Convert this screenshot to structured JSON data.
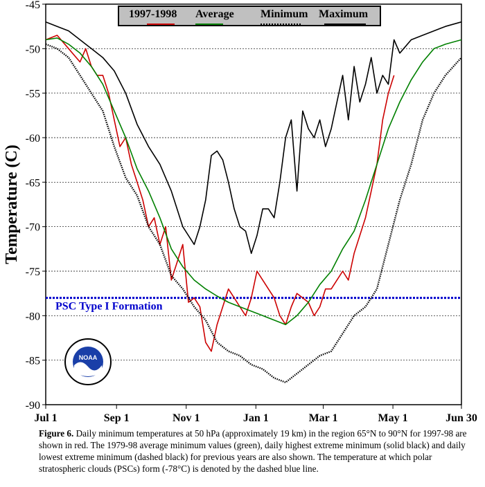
{
  "chart_data": {
    "type": "line",
    "title": "",
    "ylabel": "Temperature (C)",
    "xlabel": "",
    "xlim": [
      0,
      364
    ],
    "ylim": [
      -90,
      -45
    ],
    "grid": true,
    "x_ticks": [
      {
        "day": 0,
        "label": "Jul 1"
      },
      {
        "day": 62,
        "label": "Sep 1"
      },
      {
        "day": 123,
        "label": "Nov 1"
      },
      {
        "day": 184,
        "label": "Jan 1"
      },
      {
        "day": 243,
        "label": "Mar 1"
      },
      {
        "day": 304,
        "label": "May 1"
      },
      {
        "day": 364,
        "label": "Jun 30"
      }
    ],
    "y_ticks": [
      -45,
      -50,
      -55,
      -60,
      -65,
      -70,
      -75,
      -80,
      -85,
      -90
    ],
    "threshold": {
      "value": -78,
      "label": "PSC Type I Formation",
      "color": "#0000cc"
    },
    "legend_position": "top",
    "series": [
      {
        "name": "1997-1998",
        "color": "#cc0000",
        "style": "solid",
        "x": [
          0,
          10,
          20,
          30,
          35,
          40,
          45,
          50,
          55,
          60,
          65,
          70,
          75,
          80,
          85,
          90,
          95,
          100,
          105,
          110,
          115,
          120,
          125,
          130,
          135,
          140,
          145,
          150,
          155,
          160,
          165,
          170,
          175,
          180,
          185,
          190,
          195,
          200,
          205,
          210,
          215,
          220,
          225,
          230,
          235,
          240,
          245,
          250,
          255,
          260,
          265,
          270,
          275,
          280,
          285,
          290,
          295,
          300,
          305
        ],
        "y": [
          -49,
          -48.5,
          -50,
          -51.5,
          -50,
          -52,
          -53,
          -53,
          -55,
          -58,
          -61,
          -60,
          -63,
          -65,
          -67,
          -70,
          -69,
          -72,
          -70,
          -76,
          -74,
          -72,
          -78.5,
          -78,
          -79,
          -83,
          -84,
          -81,
          -79,
          -77,
          -78,
          -79,
          -80,
          -78,
          -75,
          -76,
          -77,
          -78,
          -80,
          -81,
          -79,
          -77.5,
          -78,
          -78.5,
          -80,
          -79,
          -77,
          -77,
          -76,
          -75,
          -76,
          -73,
          -71,
          -69,
          -66,
          -63,
          -58,
          -55,
          -53
        ]
      },
      {
        "name": "Average",
        "color": "#008000",
        "style": "solid",
        "x": [
          0,
          10,
          20,
          30,
          40,
          50,
          60,
          70,
          80,
          90,
          100,
          110,
          120,
          130,
          140,
          150,
          160,
          170,
          180,
          190,
          200,
          210,
          220,
          230,
          240,
          250,
          260,
          270,
          280,
          290,
          300,
          310,
          320,
          330,
          340,
          350,
          364
        ],
        "y": [
          -49,
          -48.8,
          -49.5,
          -50.5,
          -52,
          -54,
          -57,
          -60,
          -63.5,
          -66,
          -69,
          -72.5,
          -74.5,
          -76,
          -77,
          -77.8,
          -78.5,
          -79,
          -79.5,
          -80,
          -80.5,
          -81,
          -80,
          -78.5,
          -76.5,
          -75,
          -72.5,
          -70.5,
          -67,
          -63,
          -59,
          -56,
          -53.5,
          -51.5,
          -50,
          -49.5,
          -49
        ]
      },
      {
        "name": "Minimum",
        "color": "#000000",
        "style": "dotted",
        "x": [
          0,
          10,
          20,
          30,
          40,
          50,
          60,
          70,
          80,
          90,
          100,
          110,
          120,
          130,
          140,
          150,
          160,
          170,
          180,
          190,
          200,
          210,
          220,
          230,
          240,
          250,
          260,
          270,
          280,
          290,
          300,
          310,
          320,
          330,
          340,
          350,
          364
        ],
        "y": [
          -49.5,
          -50,
          -51,
          -53,
          -55,
          -57,
          -61,
          -64.5,
          -66.5,
          -70,
          -72,
          -75.5,
          -77,
          -79,
          -80.5,
          -83,
          -84,
          -84.5,
          -85.5,
          -86,
          -87,
          -87.5,
          -86.5,
          -85.5,
          -84.5,
          -84,
          -82,
          -80,
          -79,
          -77,
          -72,
          -67,
          -63,
          -58,
          -55,
          -53,
          -51
        ]
      },
      {
        "name": "Maximum",
        "color": "#000000",
        "style": "solid",
        "x": [
          0,
          10,
          20,
          30,
          40,
          50,
          60,
          70,
          80,
          90,
          100,
          110,
          120,
          125,
          130,
          135,
          140,
          145,
          150,
          155,
          160,
          165,
          170,
          175,
          180,
          185,
          190,
          195,
          200,
          205,
          210,
          215,
          220,
          225,
          230,
          235,
          240,
          245,
          250,
          255,
          260,
          265,
          270,
          275,
          280,
          285,
          290,
          295,
          300,
          305,
          310,
          320,
          330,
          340,
          350,
          364
        ],
        "y": [
          -47,
          -47.5,
          -48,
          -49,
          -50,
          -51,
          -52.5,
          -55,
          -58.5,
          -61,
          -63,
          -66,
          -70,
          -71,
          -72,
          -70,
          -67,
          -62,
          -61.5,
          -62.5,
          -65,
          -68,
          -70,
          -70.5,
          -73,
          -71,
          -68,
          -68,
          -69,
          -65,
          -60,
          -58,
          -66,
          -57,
          -59,
          -60,
          -58,
          -61,
          -59,
          -56,
          -53,
          -58,
          -52,
          -56,
          -54,
          -51,
          -55,
          -53,
          -54,
          -49,
          -50.5,
          -49,
          -48.5,
          -48,
          -47.5,
          -47
        ]
      }
    ]
  },
  "caption": {
    "label": "Figure 6.",
    "text": " Daily minimum temperatures at 50 hPa (approximately 19 km) in the region 65°N to 90°N for 1997-98 are shown in red.  The 1979-98 average minimum values (green), daily highest extreme minimum  (solid black) and daily lowest extreme minimum (dashed black) for previous years are also shown.  The temperature at which polar stratospheric clouds (PSCs) form (-78°C) is denoted by the dashed blue line."
  },
  "logo": {
    "text": "NOAA"
  }
}
